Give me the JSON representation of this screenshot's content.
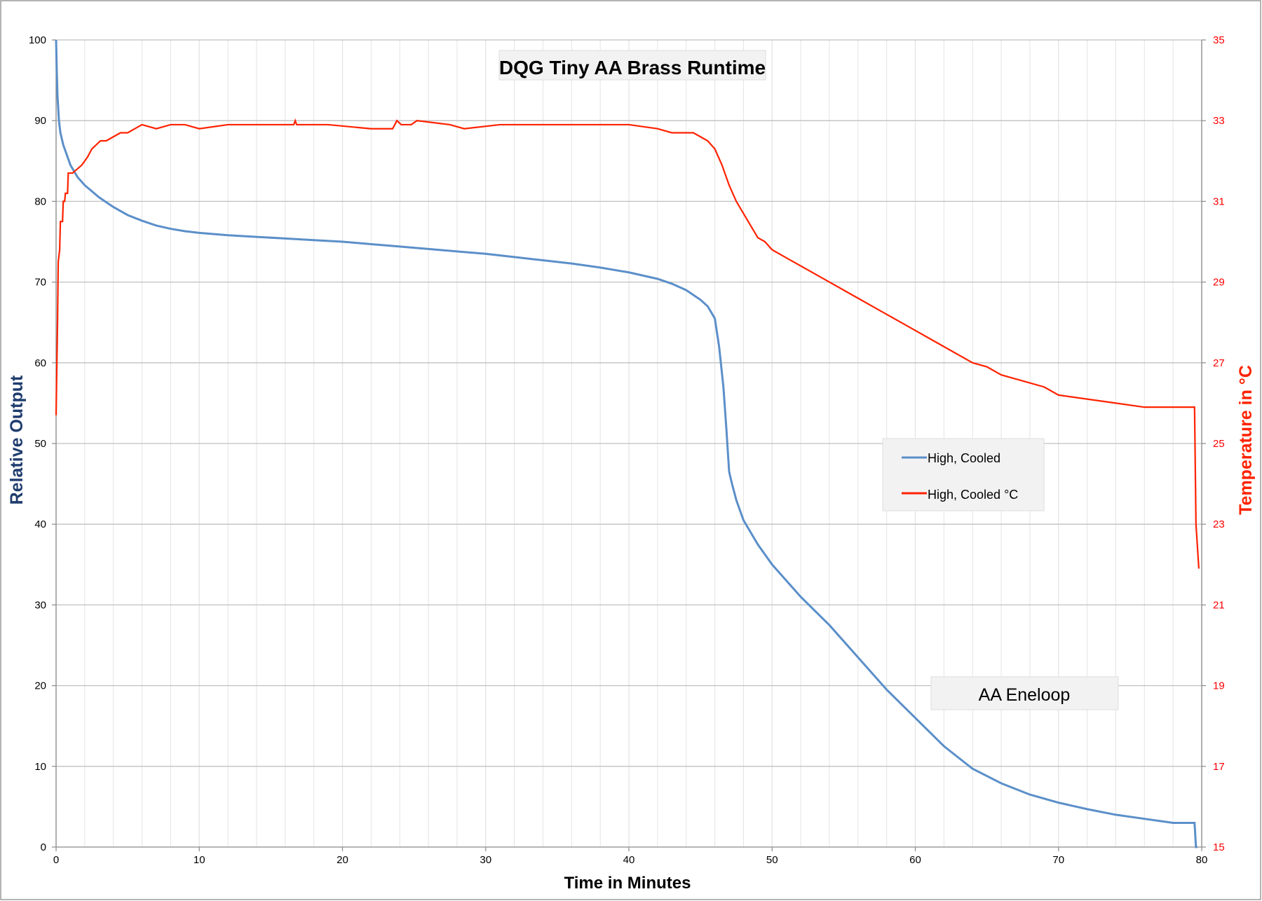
{
  "chart_data": {
    "type": "line",
    "title": "DQG Tiny AA Brass Runtime",
    "xlabel": "Time in Minutes",
    "ylabel": "Relative Output",
    "y2label": "Temperature in °C",
    "xlim": [
      0,
      80
    ],
    "ylim": [
      0,
      100
    ],
    "y2lim": [
      15,
      35
    ],
    "x_ticks": [
      0,
      10,
      20,
      30,
      40,
      50,
      60,
      70,
      80
    ],
    "y_ticks": [
      0,
      10,
      20,
      30,
      40,
      50,
      60,
      70,
      80,
      90,
      100
    ],
    "y2_ticks": [
      15,
      17,
      19,
      21,
      23,
      25,
      27,
      29,
      31,
      33,
      35
    ],
    "grid": true,
    "legend_position": "center-right",
    "annotation": "AA Eneloop",
    "colors": {
      "output": "#5b8fc9",
      "temperature": "#ff2200",
      "right_axis": "#ff0000",
      "left_title": "#1f3c6e",
      "grid_major": "#c0c0c0",
      "grid_minor": "#e4e4e4"
    },
    "series": [
      {
        "name": "High, Cooled",
        "axis": "left",
        "x": [
          0,
          0.05,
          0.1,
          0.2,
          0.3,
          0.5,
          0.8,
          1,
          1.5,
          2,
          3,
          4,
          5,
          6,
          7,
          8,
          9,
          10,
          12,
          14,
          16,
          18,
          20,
          22,
          24,
          26,
          28,
          30,
          32,
          34,
          36,
          38,
          40,
          41,
          42,
          43,
          44,
          45,
          45.5,
          46,
          46.3,
          46.6,
          46.8,
          47,
          47.2,
          47.5,
          48,
          49,
          50,
          52,
          54,
          56,
          58,
          60,
          62,
          64,
          66,
          68,
          70,
          72,
          74,
          76,
          78,
          79.5,
          79.6,
          79.7
        ],
        "values": [
          100,
          96,
          93,
          90,
          88.5,
          87,
          85.5,
          84.5,
          83,
          82,
          80.5,
          79.3,
          78.3,
          77.6,
          77,
          76.6,
          76.3,
          76.1,
          75.8,
          75.6,
          75.4,
          75.2,
          75,
          74.7,
          74.4,
          74.1,
          73.8,
          73.5,
          73.1,
          72.7,
          72.3,
          71.8,
          71.2,
          70.8,
          70.4,
          69.8,
          69,
          67.8,
          67,
          65.5,
          62,
          57,
          52,
          46.5,
          45,
          43,
          40.5,
          37.5,
          35,
          31,
          27.5,
          23.5,
          19.5,
          16,
          12.5,
          9.7,
          7.9,
          6.5,
          5.5,
          4.7,
          4,
          3.5,
          3,
          3,
          0,
          0
        ]
      },
      {
        "name": "High, Cooled  °C",
        "axis": "right",
        "x": [
          0,
          0.1,
          0.15,
          0.25,
          0.3,
          0.45,
          0.5,
          0.6,
          0.65,
          0.8,
          0.85,
          1.1,
          1.15,
          1.8,
          2,
          2.2,
          2.5,
          2.8,
          3.1,
          3.5,
          4,
          4.5,
          5,
          5.5,
          6,
          7,
          8,
          9,
          10,
          12,
          14,
          16.6,
          16.7,
          16.8,
          19,
          22,
          23.5,
          23.8,
          24.1,
          24.8,
          25.2,
          27.5,
          28.5,
          31,
          34,
          36,
          38,
          40,
          42,
          43,
          44,
          44.5,
          45,
          45.5,
          46,
          46.5,
          47,
          47.5,
          48,
          48.5,
          49,
          49.5,
          50,
          51,
          52,
          53,
          54,
          55,
          56,
          57,
          58,
          59,
          60,
          61,
          62,
          63,
          64,
          65,
          66,
          67,
          68,
          69,
          70,
          72,
          74,
          76,
          77,
          78,
          79.5,
          79.6,
          79.8
        ],
        "values": [
          25.7,
          28,
          29.5,
          29.8,
          30.5,
          30.5,
          31,
          31,
          31.2,
          31.2,
          31.7,
          31.7,
          31.7,
          31.9,
          32,
          32.1,
          32.3,
          32.4,
          32.5,
          32.5,
          32.6,
          32.7,
          32.7,
          32.8,
          32.9,
          32.8,
          32.9,
          32.9,
          32.8,
          32.9,
          32.9,
          32.9,
          33,
          32.9,
          32.9,
          32.8,
          32.8,
          33,
          32.9,
          32.9,
          33,
          32.9,
          32.8,
          32.9,
          32.9,
          32.9,
          32.9,
          32.9,
          32.8,
          32.7,
          32.7,
          32.7,
          32.6,
          32.5,
          32.3,
          31.9,
          31.4,
          31,
          30.7,
          30.4,
          30.1,
          30,
          29.8,
          29.6,
          29.4,
          29.2,
          29,
          28.8,
          28.6,
          28.4,
          28.2,
          28,
          27.8,
          27.6,
          27.4,
          27.2,
          27,
          26.9,
          26.7,
          26.6,
          26.5,
          26.4,
          26.2,
          26.1,
          26,
          25.9,
          25.9,
          25.9,
          25.9,
          23,
          21.9
        ]
      }
    ]
  }
}
